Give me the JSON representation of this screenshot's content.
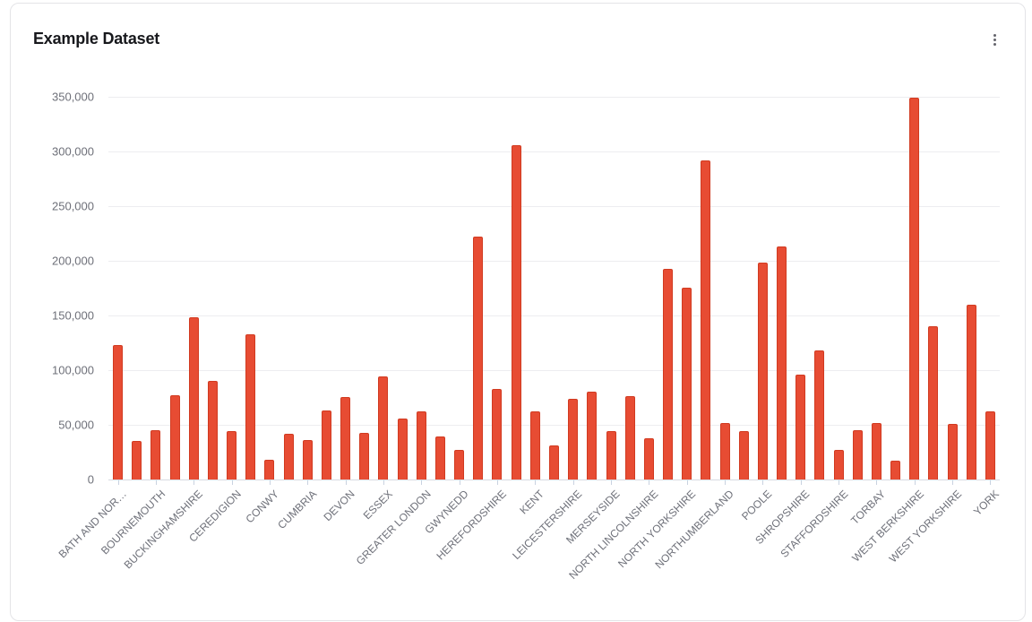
{
  "card": {
    "title": "Example Dataset",
    "menu": {
      "icon": "kebab-vertical-icon"
    }
  },
  "chart_data": {
    "type": "bar",
    "title": "Example Dataset",
    "grid": true,
    "legend": false,
    "ylim": [
      0,
      350000
    ],
    "yticks": [
      0,
      50000,
      100000,
      150000,
      200000,
      250000,
      300000,
      350000
    ],
    "ytick_labels": [
      "0",
      "50,000",
      "100,000",
      "150,000",
      "200,000",
      "250,000",
      "300,000",
      "350,000"
    ],
    "x_label_interval": 2,
    "x_label_rotation_deg": 45,
    "bar_color": "#e74c33",
    "bar_border_color": "#d13a20",
    "categories": [
      "BATH AND NOR…",
      "",
      "BOURNEMOUTH",
      "",
      "BUCKINGHAMSHIRE",
      "",
      "CEREDIGION",
      "",
      "CONWY",
      "",
      "CUMBRIA",
      "",
      "DEVON",
      "",
      "ESSEX",
      "",
      "GREATER LONDON",
      "",
      "GWYNEDD",
      "",
      "HEREFORDSHIRE",
      "",
      "KENT",
      "",
      "LEICESTERSHIRE",
      "",
      "MERSEYSIDE",
      "",
      "NORTH LINCOLNSHIRE",
      "",
      "NORTH YORKSHIRE",
      "",
      "NORTHUMBERLAND",
      "",
      "POOLE",
      "",
      "SHROPSHIRE",
      "",
      "STAFFORDSHIRE",
      "",
      "TORBAY",
      "",
      "WEST BERKSHIRE",
      "",
      "WEST YORKSHIRE",
      "",
      "YORK"
    ],
    "values": [
      123000,
      35000,
      45000,
      77000,
      148000,
      90000,
      44000,
      133000,
      18000,
      42000,
      36000,
      63000,
      75000,
      43000,
      94000,
      56000,
      62000,
      39000,
      27000,
      222000,
      83000,
      306000,
      62000,
      31000,
      74000,
      80000,
      44000,
      76000,
      38000,
      193000,
      175000,
      292000,
      52000,
      44000,
      198000,
      213000,
      96000,
      118000,
      27000,
      45000,
      52000,
      17000,
      349000,
      140000,
      51000,
      160000,
      62000
    ],
    "visible_x_labels": [
      "BATH AND NOR…",
      "BOURNEMOUTH",
      "BUCKINGHAMSHIRE",
      "CEREDIGION",
      "CONWY",
      "CUMBRIA",
      "DEVON",
      "ESSEX",
      "GREATER LONDON",
      "GWYNEDD",
      "HEREFORDSHIRE",
      "KENT",
      "LEICESTERSHIRE",
      "MERSEYSIDE",
      "NORTH LINCOLNSHIRE",
      "NORTH YORKSHIRE",
      "NORTHUMBERLAND",
      "POOLE",
      "SHROPSHIRE",
      "STAFFORDSHIRE",
      "TORBAY",
      "WEST BERKSHIRE",
      "WEST YORKSHIRE",
      "YORK"
    ]
  }
}
